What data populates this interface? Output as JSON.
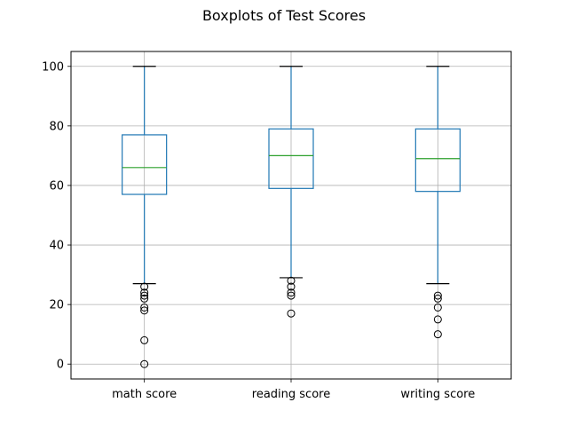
{
  "chart_data": {
    "type": "box",
    "title": "Boxplots of Test Scores",
    "xlabel": "",
    "ylabel": "",
    "categories": [
      "math score",
      "reading score",
      "writing score"
    ],
    "ylim": [
      -5,
      105
    ],
    "yticks": [
      0,
      20,
      40,
      60,
      80,
      100
    ],
    "grid": true,
    "series": [
      {
        "whisker_low": 27,
        "q1": 57,
        "median": 66,
        "q3": 77,
        "whisker_high": 100,
        "outliers": [
          26,
          24,
          23,
          22,
          19,
          18,
          8,
          0
        ]
      },
      {
        "whisker_low": 29,
        "q1": 59,
        "median": 70,
        "q3": 79,
        "whisker_high": 100,
        "outliers": [
          28,
          26,
          24,
          23,
          17
        ]
      },
      {
        "whisker_low": 27,
        "q1": 58,
        "median": 69,
        "q3": 79,
        "whisker_high": 100,
        "outliers": [
          23,
          22,
          19,
          15,
          10
        ]
      }
    ],
    "colors": {
      "box": "#1f77b4",
      "median": "#2ca02c",
      "whisker": "#1f77b4",
      "cap": "#000000",
      "outlier": "#000000",
      "grid": "#b0b0b0"
    }
  }
}
